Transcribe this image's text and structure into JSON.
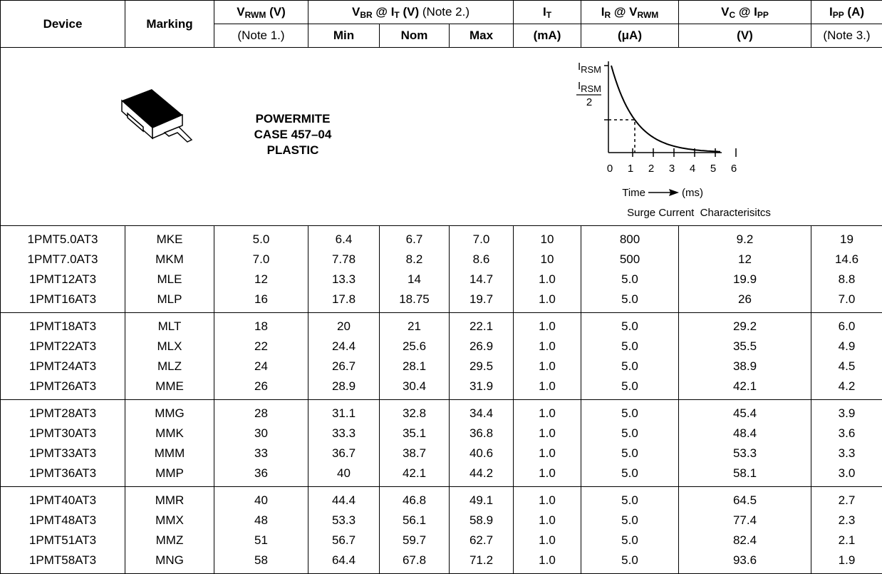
{
  "table": {
    "header_row1": [
      [
        {
          "b": "Device"
        }
      ],
      [
        {
          "b": "Marking"
        }
      ],
      [
        {
          "b": "V"
        },
        {
          "sub": "RWM"
        },
        {
          "b": " (V)"
        }
      ],
      [
        {
          "b": "V"
        },
        {
          "sub": "BR"
        },
        {
          "b": " @ I"
        },
        {
          "sub": "T"
        },
        {
          "b": " (V)"
        },
        {
          "n": " (Note 2.)"
        }
      ],
      [
        {
          "b": "I"
        },
        {
          "sub": "T"
        }
      ],
      [
        {
          "b": "I"
        },
        {
          "sub": "R"
        },
        {
          "b": " @ V"
        },
        {
          "sub": "RWM"
        }
      ],
      [
        {
          "b": "V"
        },
        {
          "sub": "C"
        },
        {
          "b": " @ I"
        },
        {
          "sub": "PP"
        }
      ],
      [
        {
          "b": "I"
        },
        {
          "sub": "PP"
        },
        {
          "b": " (A)"
        }
      ]
    ],
    "header_row2": [
      [
        {
          "n": "(Note 1.)"
        }
      ],
      [
        {
          "b": "Min"
        }
      ],
      [
        {
          "b": "Nom"
        }
      ],
      [
        {
          "b": "Max"
        }
      ],
      [
        {
          "b": "(mA)"
        }
      ],
      [
        {
          "b": "(μA)"
        }
      ],
      [
        {
          "b": "(V)"
        }
      ],
      [
        {
          "n": "(Note 3.)"
        }
      ]
    ],
    "package": {
      "lines": [
        "POWERMITE",
        "CASE 457–04",
        "PLASTIC"
      ]
    },
    "graph": {
      "y_max_label": {
        "main": "I",
        "sub": "RSM"
      },
      "y_half_label": {
        "main": "I",
        "sub": "RSM",
        "den": "2"
      },
      "x_ticks": [
        "0",
        "1",
        "2",
        "3",
        "4",
        "5",
        "6"
      ],
      "x_label": "Time",
      "x_unit": "(ms)",
      "caption": "Surge Current  Characterisitcs"
    },
    "groups": [
      [
        [
          "1PMT5.0AT3",
          "MKE",
          "5.0",
          "6.4",
          "6.7",
          "7.0",
          "10",
          "800",
          "9.2",
          "19"
        ],
        [
          "1PMT7.0AT3",
          "MKM",
          "7.0",
          "7.78",
          "8.2",
          "8.6",
          "10",
          "500",
          "12",
          "14.6"
        ],
        [
          "1PMT12AT3",
          "MLE",
          "12",
          "13.3",
          "14",
          "14.7",
          "1.0",
          "5.0",
          "19.9",
          "8.8"
        ],
        [
          "1PMT16AT3",
          "MLP",
          "16",
          "17.8",
          "18.75",
          "19.7",
          "1.0",
          "5.0",
          "26",
          "7.0"
        ]
      ],
      [
        [
          "1PMT18AT3",
          "MLT",
          "18",
          "20",
          "21",
          "22.1",
          "1.0",
          "5.0",
          "29.2",
          "6.0"
        ],
        [
          "1PMT22AT3",
          "MLX",
          "22",
          "24.4",
          "25.6",
          "26.9",
          "1.0",
          "5.0",
          "35.5",
          "4.9"
        ],
        [
          "1PMT24AT3",
          "MLZ",
          "24",
          "26.7",
          "28.1",
          "29.5",
          "1.0",
          "5.0",
          "38.9",
          "4.5"
        ],
        [
          "1PMT26AT3",
          "MME",
          "26",
          "28.9",
          "30.4",
          "31.9",
          "1.0",
          "5.0",
          "42.1",
          "4.2"
        ]
      ],
      [
        [
          "1PMT28AT3",
          "MMG",
          "28",
          "31.1",
          "32.8",
          "34.4",
          "1.0",
          "5.0",
          "45.4",
          "3.9"
        ],
        [
          "1PMT30AT3",
          "MMK",
          "30",
          "33.3",
          "35.1",
          "36.8",
          "1.0",
          "5.0",
          "48.4",
          "3.6"
        ],
        [
          "1PMT33AT3",
          "MMM",
          "33",
          "36.7",
          "38.7",
          "40.6",
          "1.0",
          "5.0",
          "53.3",
          "3.3"
        ],
        [
          "1PMT36AT3",
          "MMP",
          "36",
          "40",
          "42.1",
          "44.2",
          "1.0",
          "5.0",
          "58.1",
          "3.0"
        ]
      ],
      [
        [
          "1PMT40AT3",
          "MMR",
          "40",
          "44.4",
          "46.8",
          "49.1",
          "1.0",
          "5.0",
          "64.5",
          "2.7"
        ],
        [
          "1PMT48AT3",
          "MMX",
          "48",
          "53.3",
          "56.1",
          "58.9",
          "1.0",
          "5.0",
          "77.4",
          "2.3"
        ],
        [
          "1PMT51AT3",
          "MMZ",
          "51",
          "56.7",
          "59.7",
          "62.7",
          "1.0",
          "5.0",
          "82.4",
          "2.1"
        ],
        [
          "1PMT58AT3",
          "MNG",
          "58",
          "64.4",
          "67.8",
          "71.2",
          "1.0",
          "5.0",
          "93.6",
          "1.9"
        ]
      ]
    ]
  }
}
